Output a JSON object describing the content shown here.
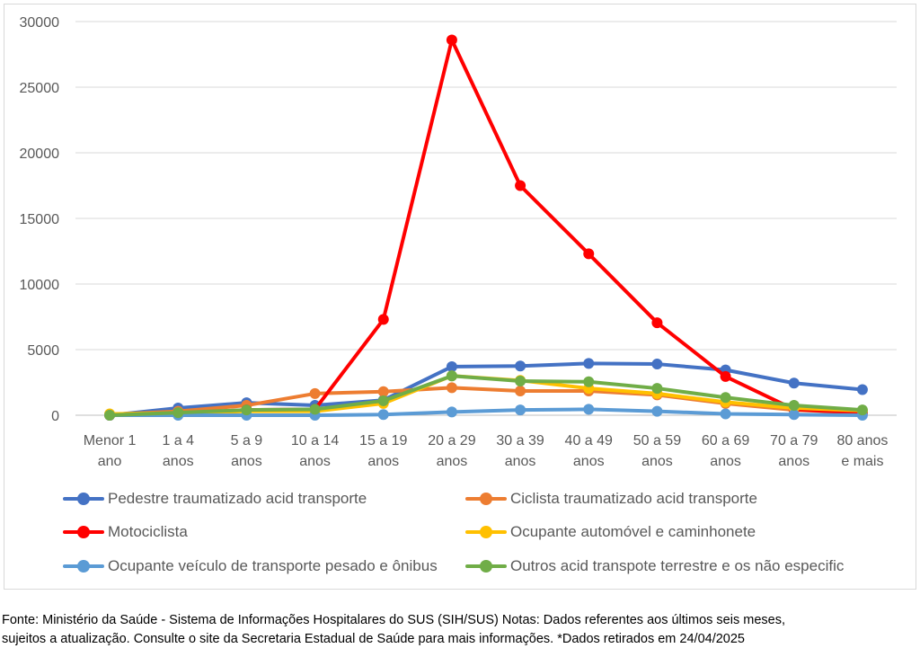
{
  "chart_data": {
    "type": "line",
    "categories": [
      [
        "Menor 1",
        "ano"
      ],
      [
        "1 a 4",
        "anos"
      ],
      [
        "5 a 9",
        "anos"
      ],
      [
        "10 a 14",
        "anos"
      ],
      [
        "15 a 19",
        "anos"
      ],
      [
        "20 a 29",
        "anos"
      ],
      [
        "30 a 39",
        "anos"
      ],
      [
        "40 a 49",
        "anos"
      ],
      [
        "50 a 59",
        "anos"
      ],
      [
        "60 a 69",
        "anos"
      ],
      [
        "70 a 79",
        "anos"
      ],
      [
        "80 anos",
        "e mais"
      ]
    ],
    "ylim": [
      0,
      30000
    ],
    "yticks": [
      0,
      5000,
      10000,
      15000,
      20000,
      25000,
      30000
    ],
    "grid": true,
    "legend_position": "bottom",
    "series": [
      {
        "name": "Pedestre traumatizado acid transporte",
        "color": "#4472c4",
        "values": [
          0,
          550,
          950,
          750,
          1150,
          3700,
          3750,
          3950,
          3900,
          3450,
          2450,
          1950
        ]
      },
      {
        "name": "Ciclista traumatizado acid transporte",
        "color": "#ed7d31",
        "values": [
          50,
          300,
          750,
          1650,
          1800,
          2100,
          1850,
          1850,
          1550,
          900,
          400,
          200
        ]
      },
      {
        "name": "Motociclista",
        "color": "#ff0000",
        "values": [
          0,
          150,
          400,
          450,
          7300,
          28600,
          17500,
          12300,
          7050,
          2950,
          450,
          150
        ]
      },
      {
        "name": "Ocupante automóvel e caminhonete",
        "color": "#ffc000",
        "values": [
          100,
          150,
          300,
          300,
          900,
          3000,
          2650,
          2050,
          1650,
          1000,
          550,
          350
        ]
      },
      {
        "name": "Ocupante veículo de transporte pesado e ônibus",
        "color": "#5b9bd5",
        "values": [
          0,
          0,
          0,
          0,
          50,
          250,
          400,
          450,
          300,
          100,
          50,
          0
        ]
      },
      {
        "name": "Outros acid transpote terrestre e os não especific",
        "color": "#70ad47",
        "values": [
          0,
          200,
          400,
          450,
          1100,
          3000,
          2600,
          2550,
          2050,
          1350,
          750,
          400
        ]
      }
    ]
  },
  "footnote": [
    "Fonte: Ministério da Saúde - Sistema de Informações Hospitalares do SUS (SIH/SUS) Notas: Dados referentes aos últimos seis meses,",
    "sujeitos a atualização. Consulte o site da Secretaria Estadual de Saúde para mais informações. *Dados retirados em 24/04/2025"
  ]
}
